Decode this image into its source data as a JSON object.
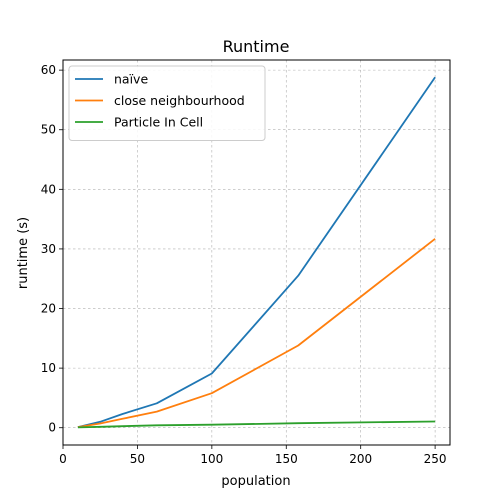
{
  "chart_data": {
    "type": "line",
    "title": "Runtime",
    "xlabel": "population",
    "ylabel": "runtime (s)",
    "xlim": [
      0,
      260
    ],
    "ylim": [
      -2.9,
      61.7
    ],
    "xticks": [
      0,
      50,
      100,
      150,
      200,
      250
    ],
    "yticks": [
      0,
      10,
      20,
      30,
      40,
      50,
      60
    ],
    "grid": true,
    "legend_position": "top-left",
    "series": [
      {
        "name": "naïve",
        "color": "#1f77b4",
        "x": [
          10,
          25,
          40,
          63,
          100,
          158,
          250
        ],
        "y": [
          0.1,
          1.0,
          2.3,
          4.1,
          9.1,
          25.5,
          58.8
        ]
      },
      {
        "name": "close neighbourhood",
        "color": "#ff7f0e",
        "x": [
          10,
          25,
          40,
          63,
          100,
          158,
          250
        ],
        "y": [
          0.1,
          0.7,
          1.5,
          2.7,
          5.8,
          13.8,
          31.7
        ]
      },
      {
        "name": "Particle In Cell",
        "color": "#2ca02c",
        "x": [
          10,
          25,
          40,
          63,
          100,
          158,
          250
        ],
        "y": [
          0.05,
          0.15,
          0.25,
          0.4,
          0.5,
          0.75,
          1.05
        ]
      }
    ]
  }
}
